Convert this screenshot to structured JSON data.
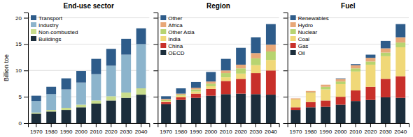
{
  "chart_data": [
    {
      "type": "bar",
      "stacked": true,
      "title": "End-use sector",
      "ylabel": "Billion toe",
      "categories": [
        "1970",
        "1980",
        "1990",
        "2000",
        "2010",
        "2020",
        "2030",
        "2040"
      ],
      "series": [
        {
          "name": "Buildings",
          "color": "#1c2e3c",
          "values": [
            1.8,
            2.2,
            2.5,
            3.0,
            3.7,
            4.3,
            4.8,
            5.4
          ]
        },
        {
          "name": "Non-combusted",
          "color": "#c8dc8c",
          "values": [
            0.2,
            0.3,
            0.4,
            0.5,
            0.6,
            0.8,
            1.0,
            1.2
          ]
        },
        {
          "name": "Industry",
          "color": "#8cb4cc",
          "values": [
            2.2,
            3.0,
            3.5,
            4.2,
            5.0,
            5.8,
            7.2,
            8.4
          ]
        },
        {
          "name": "Transport",
          "color": "#2e5c8a",
          "values": [
            1.0,
            1.4,
            2.1,
            2.2,
            2.9,
            3.2,
            3.0,
            3.0
          ]
        }
      ],
      "ylim": [
        0,
        21
      ],
      "yticks": [
        0,
        5,
        10,
        15,
        20
      ],
      "grid": true,
      "legend": "top-left"
    },
    {
      "type": "bar",
      "stacked": true,
      "title": "Region",
      "categories": [
        "1970",
        "1980",
        "1990",
        "2000",
        "2010",
        "2020",
        "2030",
        "2040"
      ],
      "series": [
        {
          "name": "OECD",
          "color": "#1c2e3c",
          "values": [
            3.6,
            4.4,
            4.8,
            5.2,
            5.5,
            5.6,
            5.5,
            5.4
          ]
        },
        {
          "name": "China",
          "color": "#c8302a",
          "values": [
            0.4,
            0.5,
            0.8,
            1.3,
            2.5,
            2.8,
            4.0,
            4.6
          ]
        },
        {
          "name": "India",
          "color": "#f0d878",
          "values": [
            0.2,
            0.3,
            0.4,
            0.5,
            0.7,
            1.0,
            1.5,
            2.0
          ]
        },
        {
          "name": "Other Asia",
          "color": "#b8d470",
          "values": [
            0.2,
            0.2,
            0.4,
            0.5,
            0.8,
            1.0,
            1.3,
            1.6
          ]
        },
        {
          "name": "Africa",
          "color": "#e8a878",
          "values": [
            0.2,
            0.2,
            0.3,
            0.4,
            0.5,
            0.7,
            1.0,
            1.3
          ]
        },
        {
          "name": "Other",
          "color": "#2e5c8a",
          "values": [
            0.5,
            1.0,
            1.1,
            1.8,
            2.2,
            3.2,
            3.0,
            3.9
          ]
        }
      ],
      "ylim": [
        0,
        21
      ],
      "yticks": [
        0,
        5,
        10,
        15,
        20
      ],
      "grid": true,
      "legend": "top-left",
      "tick_labels": "x"
    },
    {
      "type": "bar",
      "stacked": true,
      "title": "Fuel",
      "categories": [
        "1970",
        "1980",
        "1990",
        "2000",
        "2010",
        "2020",
        "2030",
        "2040"
      ],
      "series": [
        {
          "name": "Oil",
          "color": "#1c2e3c",
          "values": [
            2.5,
            3.0,
            3.1,
            3.5,
            4.2,
            4.4,
            4.9,
            4.8
          ]
        },
        {
          "name": "Gas",
          "color": "#c8302a",
          "values": [
            0.5,
            1.0,
            1.2,
            1.5,
            2.0,
            2.5,
            3.5,
            4.1
          ]
        },
        {
          "name": "Coal",
          "color": "#f0d878",
          "values": [
            1.5,
            1.7,
            2.1,
            2.4,
            3.6,
            4.2,
            4.3,
            5.5
          ]
        },
        {
          "name": "Nuclear",
          "color": "#b8d470",
          "values": [
            0.0,
            0.1,
            0.5,
            0.5,
            0.6,
            0.6,
            0.7,
            0.9
          ]
        },
        {
          "name": "Hydro",
          "color": "#e8a878",
          "values": [
            0.2,
            0.3,
            0.4,
            0.5,
            0.6,
            0.7,
            0.8,
            1.0
          ]
        },
        {
          "name": "Renewables",
          "color": "#2e5c8a",
          "values": [
            0.0,
            0.0,
            0.0,
            0.1,
            0.2,
            0.6,
            1.4,
            2.5
          ]
        }
      ],
      "ylim": [
        0,
        21
      ],
      "yticks": [
        0,
        5,
        10,
        15,
        20
      ],
      "grid": true,
      "legend": "top-left",
      "tick_labels": "x"
    }
  ]
}
